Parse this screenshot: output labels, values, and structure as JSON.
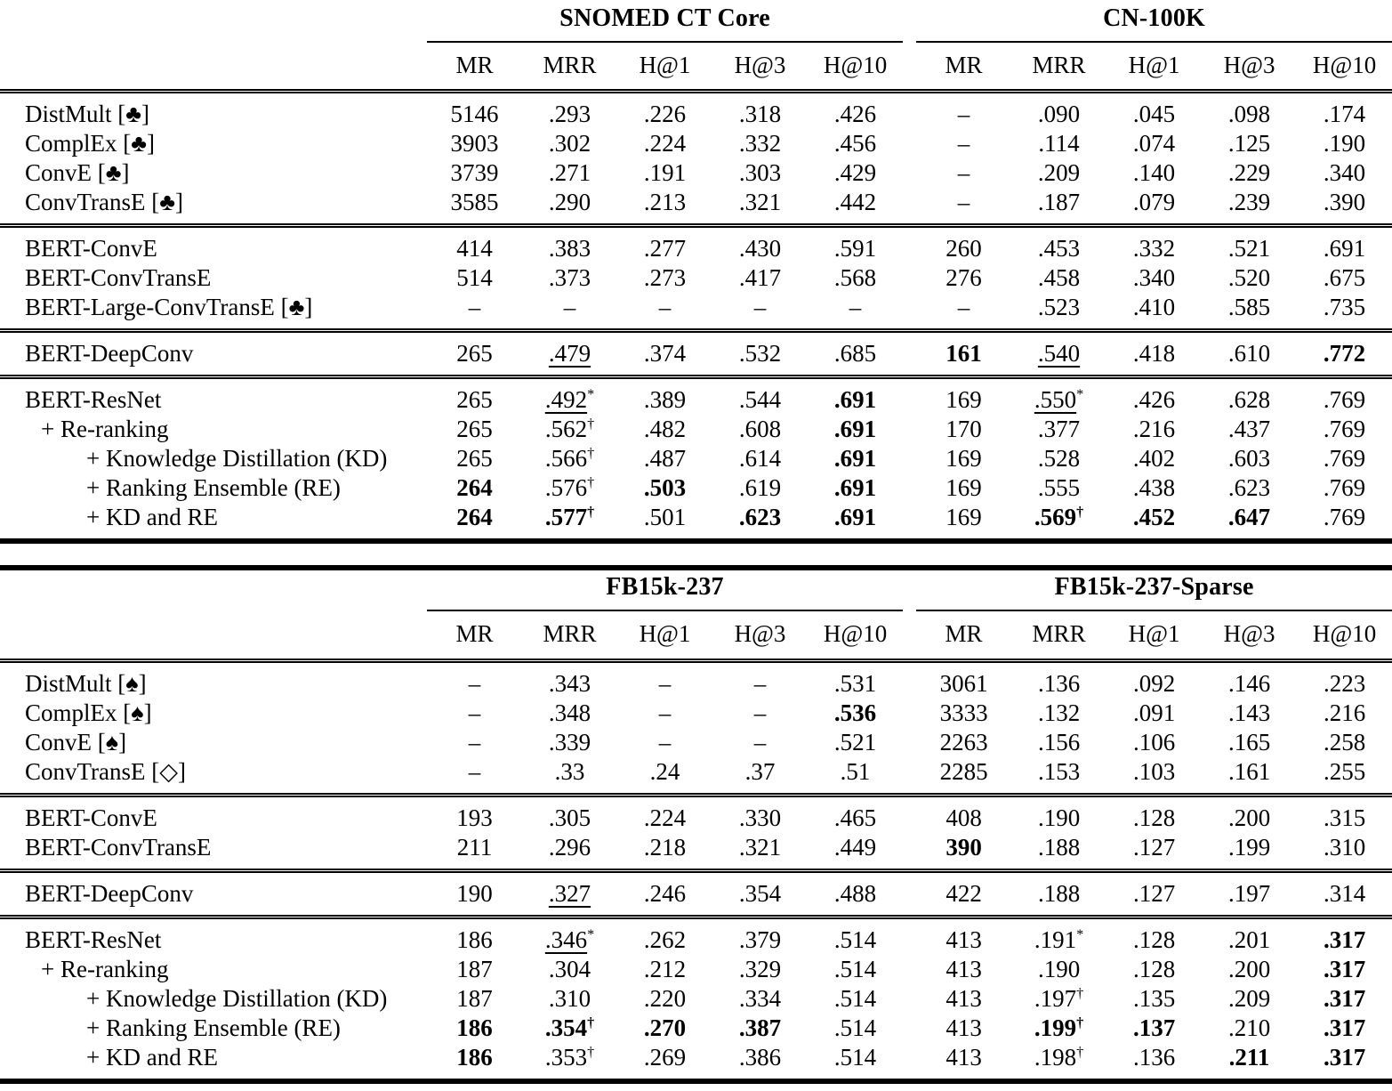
{
  "accent_color": "#000000",
  "background_color": "#ffffff",
  "tables": [
    {
      "name": "results-table-snomed-cn",
      "groups": [
        "SNOMED CT Core",
        "CN-100K"
      ],
      "metrics": [
        "MR",
        "MRR",
        "H@1",
        "H@3",
        "H@10"
      ],
      "sections": [
        {
          "rows": [
            {
              "label": "DistMult [♣]",
              "indent": 0,
              "cells": [
                "5146",
                ".293",
                ".226",
                ".318",
                ".426",
                "–",
                ".090",
                ".045",
                ".098",
                ".174"
              ]
            },
            {
              "label": "ComplEx [♣]",
              "indent": 0,
              "cells": [
                "3903",
                ".302",
                ".224",
                ".332",
                ".456",
                "–",
                ".114",
                ".074",
                ".125",
                ".190"
              ]
            },
            {
              "label": "ConvE [♣]",
              "indent": 0,
              "cells": [
                "3739",
                ".271",
                ".191",
                ".303",
                ".429",
                "–",
                ".209",
                ".140",
                ".229",
                ".340"
              ]
            },
            {
              "label": "ConvTransE [♣]",
              "indent": 0,
              "cells": [
                "3585",
                ".290",
                ".213",
                ".321",
                ".442",
                "–",
                ".187",
                ".079",
                ".239",
                ".390"
              ]
            }
          ]
        },
        {
          "rows": [
            {
              "label": "BERT-ConvE",
              "indent": 0,
              "cells": [
                "414",
                ".383",
                ".277",
                ".430",
                ".591",
                "260",
                ".453",
                ".332",
                ".521",
                ".691"
              ]
            },
            {
              "label": "BERT-ConvTransE",
              "indent": 0,
              "cells": [
                "514",
                ".373",
                ".273",
                ".417",
                ".568",
                "276",
                ".458",
                ".340",
                ".520",
                ".675"
              ]
            },
            {
              "label": "BERT-Large-ConvTransE [♣]",
              "indent": 0,
              "cells": [
                "–",
                "–",
                "–",
                "–",
                "–",
                "–",
                ".523",
                ".410",
                ".585",
                ".735"
              ]
            }
          ]
        },
        {
          "rows": [
            {
              "label": "BERT-DeepConv",
              "indent": 0,
              "cells": [
                "265",
                {
                  "v": ".479",
                  "u": 1
                },
                ".374",
                ".532",
                ".685",
                {
                  "v": "161",
                  "b": 1
                },
                {
                  "v": ".540",
                  "u": 1
                },
                ".418",
                ".610",
                {
                  "v": ".772",
                  "b": 1
                }
              ]
            }
          ]
        },
        {
          "rows": [
            {
              "label": "BERT-ResNet",
              "indent": 0,
              "cells": [
                "265",
                {
                  "v": ".492",
                  "u": 1,
                  "sup": "*"
                },
                ".389",
                ".544",
                {
                  "v": ".691",
                  "b": 1
                },
                "169",
                {
                  "v": ".550",
                  "u": 1,
                  "sup": "*"
                },
                ".426",
                ".628",
                ".769"
              ]
            },
            {
              "label": "+ Re-ranking",
              "indent": 1,
              "cells": [
                "265",
                {
                  "v": ".562",
                  "sup": "†"
                },
                ".482",
                ".608",
                {
                  "v": ".691",
                  "b": 1
                },
                "170",
                ".377",
                ".216",
                ".437",
                ".769"
              ]
            },
            {
              "label": "+ Knowledge Distillation (KD)",
              "indent": 2,
              "cells": [
                "265",
                {
                  "v": ".566",
                  "sup": "†"
                },
                ".487",
                ".614",
                {
                  "v": ".691",
                  "b": 1
                },
                "169",
                ".528",
                ".402",
                ".603",
                ".769"
              ]
            },
            {
              "label": "+ Ranking Ensemble (RE)",
              "indent": 2,
              "cells": [
                {
                  "v": "264",
                  "b": 1
                },
                {
                  "v": ".576",
                  "sup": "†"
                },
                {
                  "v": ".503",
                  "b": 1
                },
                ".619",
                {
                  "v": ".691",
                  "b": 1
                },
                "169",
                ".555",
                ".438",
                ".623",
                ".769"
              ]
            },
            {
              "label": "+ KD and RE",
              "indent": 2,
              "cells": [
                {
                  "v": "264",
                  "b": 1
                },
                {
                  "v": ".577",
                  "b": 1,
                  "sup": "†"
                },
                ".501",
                {
                  "v": ".623",
                  "b": 1
                },
                {
                  "v": ".691",
                  "b": 1
                },
                "169",
                {
                  "v": ".569",
                  "b": 1,
                  "sup": "†"
                },
                {
                  "v": ".452",
                  "b": 1
                },
                {
                  "v": ".647",
                  "b": 1
                },
                ".769"
              ]
            }
          ]
        }
      ]
    },
    {
      "name": "results-table-fb15k",
      "groups": [
        "FB15k-237",
        "FB15k-237-Sparse"
      ],
      "metrics": [
        "MR",
        "MRR",
        "H@1",
        "H@3",
        "H@10"
      ],
      "sections": [
        {
          "rows": [
            {
              "label": "DistMult [♠]",
              "indent": 0,
              "cells": [
                "–",
                ".343",
                "–",
                "–",
                ".531",
                "3061",
                ".136",
                ".092",
                ".146",
                ".223"
              ]
            },
            {
              "label": "ComplEx [♠]",
              "indent": 0,
              "cells": [
                "–",
                ".348",
                "–",
                "–",
                {
                  "v": ".536",
                  "b": 1
                },
                "3333",
                ".132",
                ".091",
                ".143",
                ".216"
              ]
            },
            {
              "label": "ConvE [♠]",
              "indent": 0,
              "cells": [
                "–",
                ".339",
                "–",
                "–",
                ".521",
                "2263",
                ".156",
                ".106",
                ".165",
                ".258"
              ]
            },
            {
              "label": "ConvTransE [◇]",
              "indent": 0,
              "cells": [
                "–",
                ".33",
                ".24",
                ".37",
                ".51",
                "2285",
                ".153",
                ".103",
                ".161",
                ".255"
              ]
            }
          ]
        },
        {
          "rows": [
            {
              "label": "BERT-ConvE",
              "indent": 0,
              "cells": [
                "193",
                ".305",
                ".224",
                ".330",
                ".465",
                "408",
                ".190",
                ".128",
                ".200",
                ".315"
              ]
            },
            {
              "label": "BERT-ConvTransE",
              "indent": 0,
              "cells": [
                "211",
                ".296",
                ".218",
                ".321",
                ".449",
                {
                  "v": "390",
                  "b": 1
                },
                ".188",
                ".127",
                ".199",
                ".310"
              ]
            }
          ]
        },
        {
          "rows": [
            {
              "label": "BERT-DeepConv",
              "indent": 0,
              "cells": [
                "190",
                {
                  "v": ".327",
                  "u": 1
                },
                ".246",
                ".354",
                ".488",
                "422",
                ".188",
                ".127",
                ".197",
                ".314"
              ]
            }
          ]
        },
        {
          "rows": [
            {
              "label": "BERT-ResNet",
              "indent": 0,
              "cells": [
                "186",
                {
                  "v": ".346",
                  "u": 1,
                  "sup": "*"
                },
                ".262",
                ".379",
                ".514",
                "413",
                {
                  "v": ".191",
                  "sup": "*"
                },
                ".128",
                ".201",
                {
                  "v": ".317",
                  "b": 1
                }
              ]
            },
            {
              "label": "+ Re-ranking",
              "indent": 1,
              "cells": [
                "187",
                ".304",
                ".212",
                ".329",
                ".514",
                "413",
                ".190",
                ".128",
                ".200",
                {
                  "v": ".317",
                  "b": 1
                }
              ]
            },
            {
              "label": "+ Knowledge Distillation (KD)",
              "indent": 2,
              "cells": [
                "187",
                ".310",
                ".220",
                ".334",
                ".514",
                "413",
                {
                  "v": ".197",
                  "sup": "†"
                },
                ".135",
                ".209",
                {
                  "v": ".317",
                  "b": 1
                }
              ]
            },
            {
              "label": "+ Ranking Ensemble (RE)",
              "indent": 2,
              "cells": [
                {
                  "v": "186",
                  "b": 1
                },
                {
                  "v": ".354",
                  "b": 1,
                  "sup": "†"
                },
                {
                  "v": ".270",
                  "b": 1
                },
                {
                  "v": ".387",
                  "b": 1
                },
                ".514",
                "413",
                {
                  "v": ".199",
                  "b": 1,
                  "sup": "†"
                },
                {
                  "v": ".137",
                  "b": 1
                },
                ".210",
                {
                  "v": ".317",
                  "b": 1
                }
              ]
            },
            {
              "label": "+ KD and RE",
              "indent": 2,
              "cells": [
                {
                  "v": "186",
                  "b": 1
                },
                {
                  "v": ".353",
                  "sup": "†"
                },
                ".269",
                ".386",
                ".514",
                "413",
                {
                  "v": ".198",
                  "sup": "†"
                },
                ".136",
                {
                  "v": ".211",
                  "b": 1
                },
                {
                  "v": ".317",
                  "b": 1
                }
              ]
            }
          ]
        }
      ]
    }
  ]
}
